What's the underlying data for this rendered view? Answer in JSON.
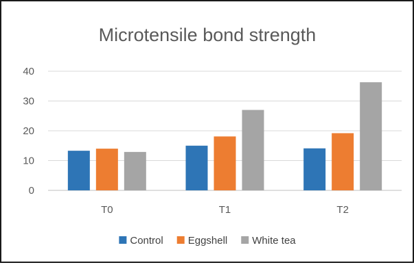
{
  "chart_data": {
    "type": "bar",
    "title": "Microtensile bond strength",
    "categories": [
      "T0",
      "T1",
      "T2"
    ],
    "series": [
      {
        "name": "Control",
        "values": [
          13.3,
          15.0,
          14.1
        ],
        "color": "#2e75b6"
      },
      {
        "name": "Eggshell",
        "values": [
          14.0,
          18.1,
          19.2
        ],
        "color": "#ed7d31"
      },
      {
        "name": "White tea",
        "values": [
          12.9,
          27.0,
          36.3
        ],
        "color": "#a5a5a5"
      }
    ],
    "ylim": [
      0,
      40
    ],
    "yticks": [
      0,
      10,
      20,
      30,
      40
    ],
    "grid": true,
    "legend_position": "bottom",
    "xlabel": "",
    "ylabel": ""
  }
}
